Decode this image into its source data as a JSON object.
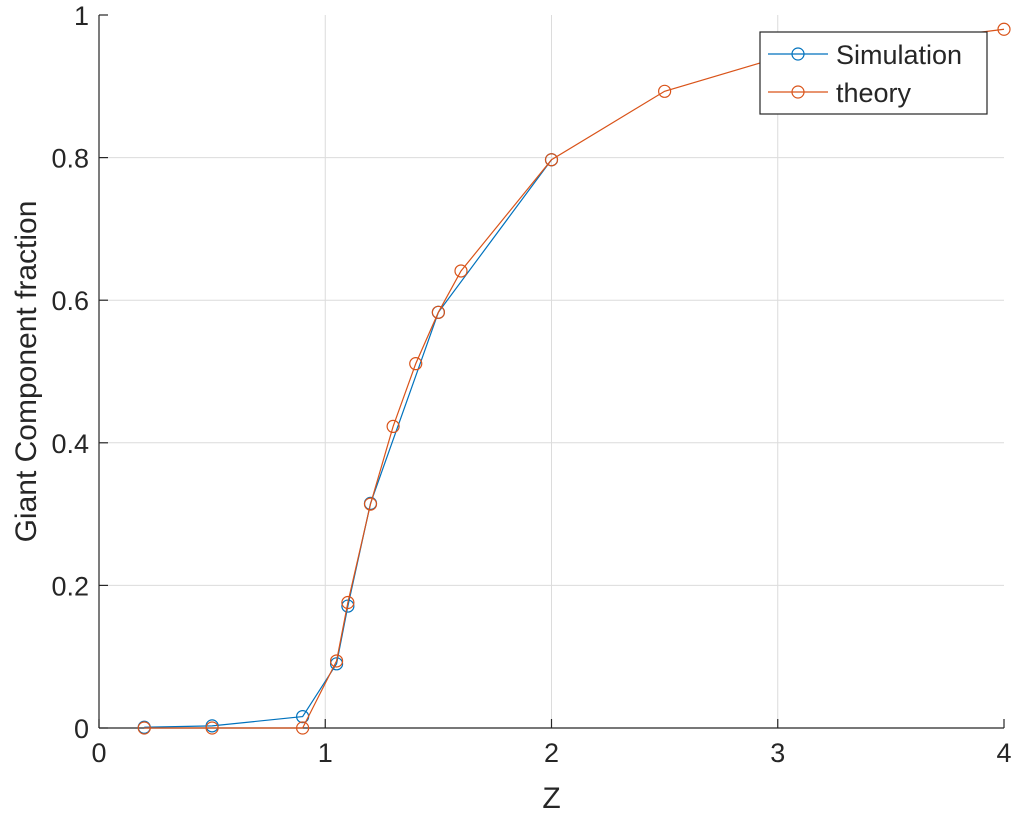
{
  "chart_data": {
    "type": "line",
    "xlabel": "Z",
    "ylabel": "Giant Component fraction",
    "xlim": [
      0,
      4
    ],
    "ylim": [
      0,
      1
    ],
    "xticks": [
      0,
      1,
      2,
      3,
      4
    ],
    "yticks": [
      0,
      0.2,
      0.4,
      0.6,
      0.8,
      1
    ],
    "xtick_labels": [
      "0",
      "1",
      "2",
      "3",
      "4"
    ],
    "ytick_labels": [
      "0",
      "0.2",
      "0.4",
      "0.6",
      "0.8",
      "1"
    ],
    "grid": true,
    "legend_position": "top-right",
    "marker": "open-circle",
    "series": [
      {
        "name": "Simulation",
        "color": "#0072BD",
        "x": [
          0.2,
          0.5,
          0.9,
          1.05,
          1.1,
          1.2,
          1.5,
          2.0
        ],
        "y": [
          0.001,
          0.003,
          0.016,
          0.09,
          0.171,
          0.315,
          0.583,
          0.797
        ]
      },
      {
        "name": "theory",
        "color": "#D95319",
        "x": [
          0.2,
          0.5,
          0.9,
          1.05,
          1.1,
          1.2,
          1.3,
          1.4,
          1.5,
          1.6,
          2.0,
          2.5,
          3.0,
          4.0
        ],
        "y": [
          0.0,
          0.0,
          0.0,
          0.094,
          0.176,
          0.314,
          0.423,
          0.511,
          0.583,
          0.641,
          0.797,
          0.893,
          0.94,
          0.98
        ]
      }
    ]
  }
}
